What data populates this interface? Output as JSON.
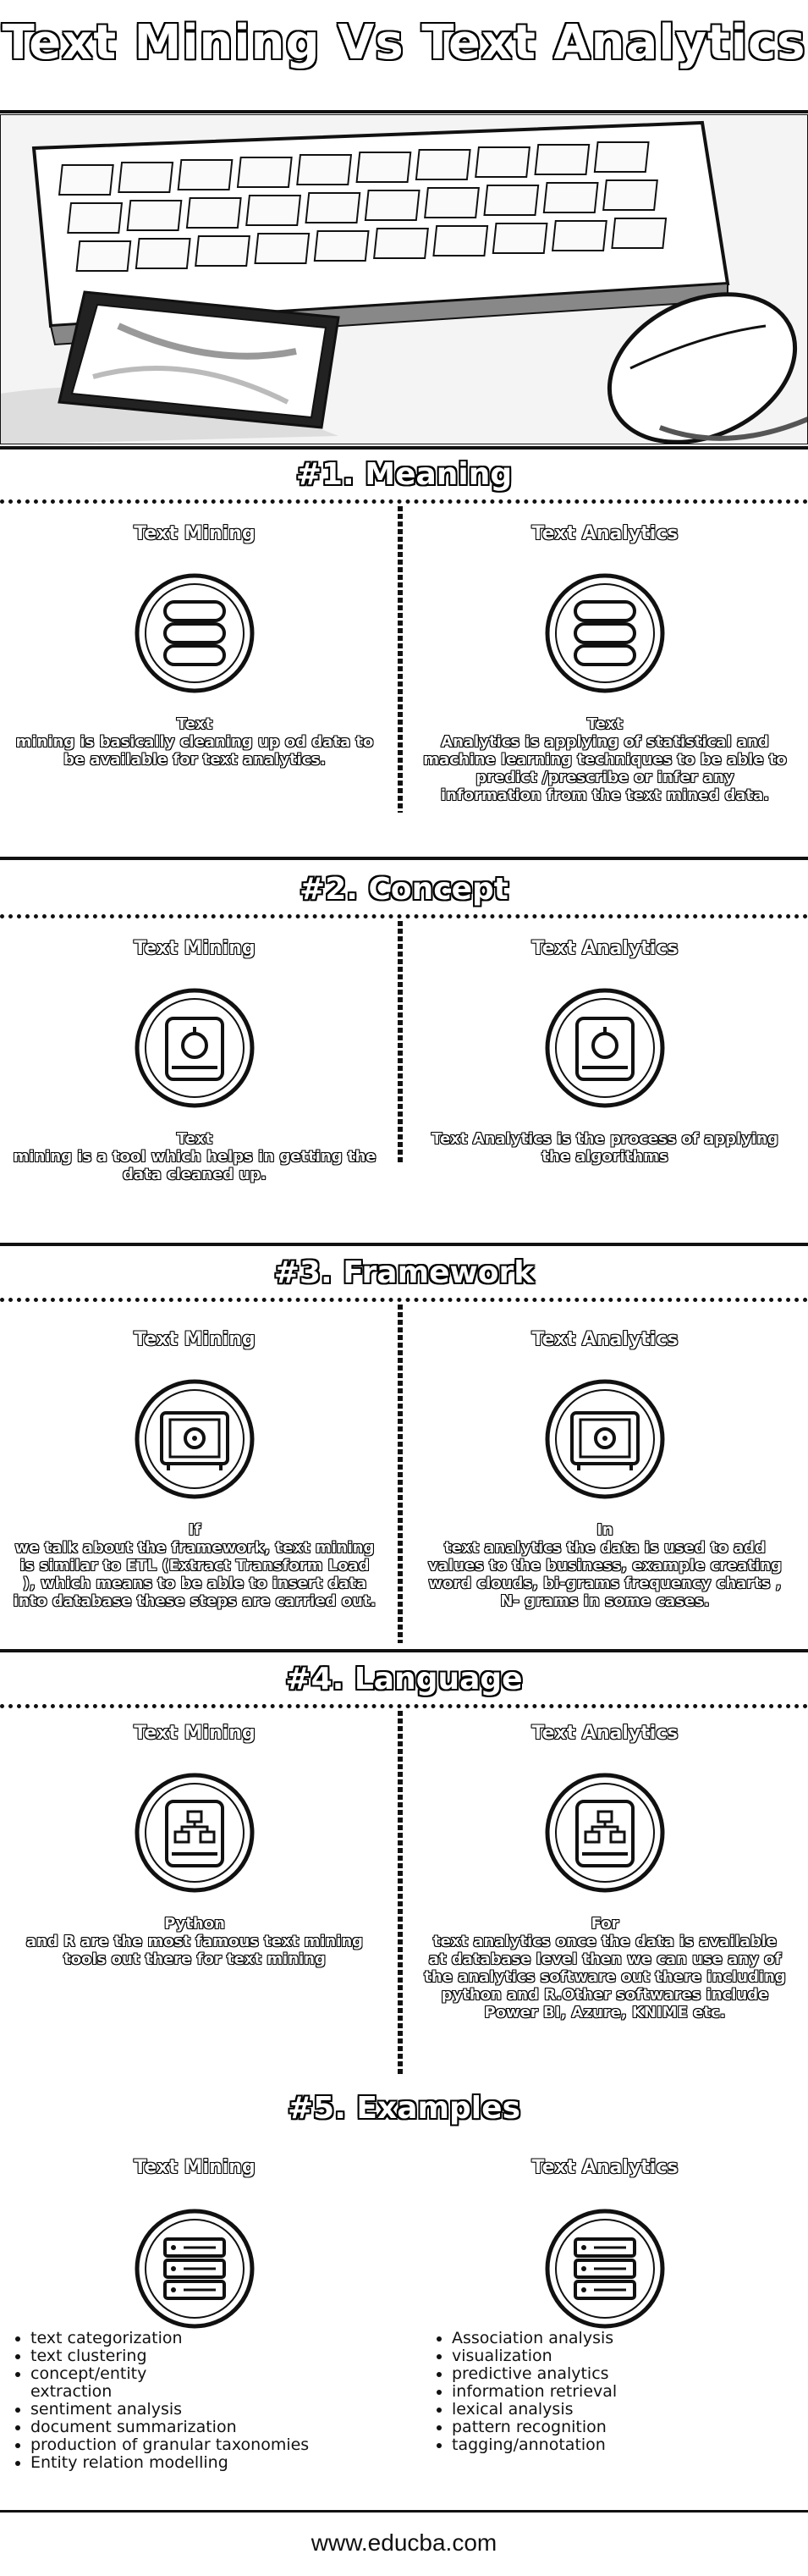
{
  "title": "Text Mining Vs Text Analytics",
  "col_labels": {
    "left": "Text Mining",
    "right": "Text Analytics"
  },
  "sections": [
    {
      "heading": "#1. Meaning",
      "icon": "database-icon",
      "left": "Text\nmining is basically cleaning up od data to be available for text analytics.",
      "right": "Text\nAnalytics is applying of statistical and machine learning techniques to be able to predict /prescribe or infer any information from the text mined data."
    },
    {
      "heading": "#2. Concept",
      "icon": "hard-drive-icon",
      "left": "Text\nmining is a tool which helps in getting the data cleaned up.",
      "right": "Text Analytics is the process of applying the algorithms"
    },
    {
      "heading": "#3. Framework",
      "icon": "safe-icon",
      "left": "If\nwe talk about the framework, text mining is similar to ETL (Extract Transform Load ), which means to be able to insert data into database these steps are carried out.",
      "right": "In\ntext analytics the data is used to add values to the business, example creating word clouds, bi-grams frequency charts , N- grams in some cases."
    },
    {
      "heading": "#4. Language",
      "icon": "network-drive-icon",
      "left": "Python\nand R are the most famous text mining tools out there for text mining",
      "right": "For\ntext analytics once the data is available at database level then we can use any of the analytics software out there including python and R.Other softwares include Power BI, Azure, KNIME etc."
    },
    {
      "heading": "#5. Examples",
      "icon": "server-icon",
      "left_items": [
        "text categorization",
        "text clustering",
        "concept/entity extraction",
        "sentiment analysis",
        "document summarization",
        "production of granular taxonomies",
        "Entity relation modelling"
      ],
      "right_items": [
        "Association analysis",
        "visualization",
        "predictive analytics",
        "information retrieval",
        "lexical analysis",
        "pattern recognition",
        "tagging/annotation"
      ]
    }
  ],
  "footer": "www.educba.com"
}
